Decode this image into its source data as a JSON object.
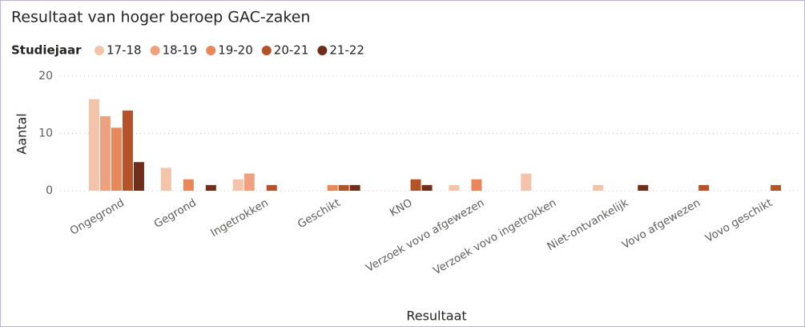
{
  "chart_data": {
    "type": "bar",
    "title": "Resultaat van hoger beroep GAC-zaken",
    "legend_title": "Studiejaar",
    "legend": "top-left",
    "x_label": "Resultaat",
    "y_label": "Aantal",
    "categories": [
      "Ongegrond",
      "Gegrond",
      "Ingetrokken",
      "Geschikt",
      "KNO",
      "Verzoek vovo afgewezen",
      "Verzoek vovo ingetrokken",
      "Niet-ontvankelijk",
      "Vovo afgewezen",
      "Vovo geschikt"
    ],
    "series": [
      {
        "name": "17-18",
        "color": "#f4c4aa",
        "values": [
          16,
          4,
          2,
          0,
          0,
          1,
          3,
          1,
          0,
          0
        ]
      },
      {
        "name": "18-19",
        "color": "#efa07e",
        "values": [
          13,
          0,
          3,
          0,
          0,
          0,
          0,
          0,
          0,
          0
        ]
      },
      {
        "name": "19-20",
        "color": "#e8875a",
        "values": [
          11,
          2,
          0,
          1,
          0,
          2,
          0,
          0,
          0,
          0
        ]
      },
      {
        "name": "20-21",
        "color": "#b5522a",
        "values": [
          14,
          0,
          1,
          1,
          2,
          0,
          0,
          0,
          1,
          1
        ]
      },
      {
        "name": "21-22",
        "color": "#6e2e1a",
        "values": [
          5,
          1,
          0,
          1,
          1,
          0,
          0,
          1,
          0,
          0
        ]
      }
    ],
    "ylim": [
      0,
      20
    ],
    "yticks": [
      0,
      10,
      20
    ],
    "grid": true
  }
}
